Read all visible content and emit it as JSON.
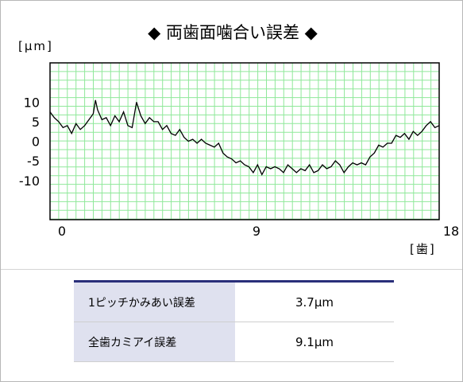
{
  "chart_data": {
    "type": "line",
    "title": "◆ 両歯面噛合い誤差 ◆",
    "ylabel": "[μm]",
    "xlabel": "[歯]",
    "xlim": [
      0,
      18
    ],
    "ylim": [
      -20,
      20
    ],
    "x_ticks": [
      "0",
      "9",
      "18"
    ],
    "y_ticks": [
      "10",
      "5",
      "0",
      "-5",
      "-10"
    ],
    "grid": true,
    "colors": {
      "grid": "#8fe89a",
      "line": "#000000",
      "plot_border": "#000000"
    },
    "series": [
      {
        "x": [
          0,
          0.2,
          0.4,
          0.6,
          0.8,
          1.0,
          1.2,
          1.4,
          1.6,
          1.8,
          2.0,
          2.1,
          2.2,
          2.4,
          2.6,
          2.8,
          3.0,
          3.2,
          3.4,
          3.6,
          3.8,
          4.0,
          4.2,
          4.4,
          4.6,
          4.8,
          5.0,
          5.2,
          5.4,
          5.6,
          5.8,
          6.0,
          6.2,
          6.4,
          6.6,
          6.8,
          7.0,
          7.2,
          7.4,
          7.6,
          7.8,
          8.0,
          8.2,
          8.4,
          8.6,
          8.8,
          9.0,
          9.2,
          9.4,
          9.6,
          9.8,
          10.0,
          10.2,
          10.4,
          10.6,
          10.8,
          11.0,
          11.2,
          11.4,
          11.6,
          11.8,
          12.0,
          12.2,
          12.4,
          12.6,
          12.8,
          13.0,
          13.2,
          13.4,
          13.6,
          13.8,
          14.0,
          14.2,
          14.4,
          14.6,
          14.8,
          15.0,
          15.2,
          15.4,
          15.6,
          15.8,
          16.0,
          16.2,
          16.4,
          16.6,
          16.8,
          17.0,
          17.2,
          17.4,
          17.6,
          17.8,
          18.0
        ],
        "y": [
          7.5,
          6,
          5,
          3.5,
          4,
          2,
          4.5,
          3,
          4,
          5.5,
          7,
          10.5,
          8,
          5.5,
          6,
          4,
          6.5,
          5,
          7.5,
          4,
          3.5,
          10,
          6.5,
          4.5,
          6,
          5,
          5,
          3,
          4,
          2,
          1.5,
          3,
          1,
          0,
          0.5,
          -0.5,
          0.5,
          -0.5,
          -1,
          -1.5,
          -0.5,
          -3,
          -4,
          -4.5,
          -5.5,
          -5,
          -6,
          -6.5,
          -8,
          -6,
          -8.5,
          -6.5,
          -7,
          -6.5,
          -7,
          -8,
          -6,
          -7,
          -8,
          -7,
          -7.5,
          -6,
          -8,
          -7.5,
          -6,
          -7,
          -6.5,
          -5,
          -6,
          -8,
          -6.5,
          -5.5,
          -6,
          -5.5,
          -6,
          -4,
          -3,
          -1,
          -1.5,
          -0.5,
          -0.5,
          1.5,
          1,
          2,
          0.5,
          2.5,
          1.5,
          2.5,
          4,
          5,
          3.5,
          4
        ]
      }
    ]
  },
  "table": {
    "rows": [
      {
        "label": "1ピッチかみあい誤差",
        "value": "3.7μm"
      },
      {
        "label": "全歯カミアイ誤差",
        "value": "9.1μm"
      }
    ]
  }
}
